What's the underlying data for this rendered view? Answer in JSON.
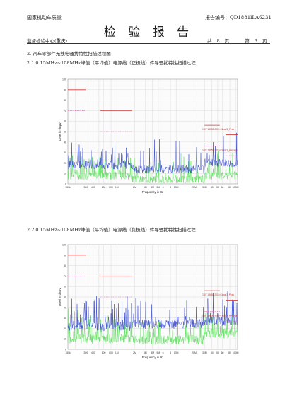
{
  "header": {
    "org": "国家机动车质量",
    "report_no": "报告编号：QD1881lLA6231",
    "title": "检 验 报 告",
    "center": "监督检验中心(重庆)",
    "pages": {
      "total_prefix": "共",
      "total": "8",
      "page_unit": "页",
      "current_prefix": "第",
      "current": "3",
      "current_unit": "页"
    }
  },
  "section": {
    "heading": "2. 汽车零部件无线电骚扰特性扫描过程图",
    "sub1": "2.1  0.15MHz~108MHz峰值（平均值）电源线（正极线）传导骚扰特性扫描过程：",
    "sub2": "2.2  0.15MHz~108MHz峰值（平均值）电源线（负极线）传导骚扰特性扫描过程："
  },
  "chart_data": [
    {
      "type": "line",
      "ylabel": "Level in dBµV",
      "xlabel": "Frequency in Hz",
      "ylim": [
        0,
        100
      ],
      "xlim_mhz": [
        0.15,
        108
      ],
      "x_scale": "log",
      "grid": true,
      "y_ticks": [
        "0",
        "10",
        "20",
        "30",
        "40",
        "50",
        "60",
        "70",
        "80",
        "90",
        "100"
      ],
      "x_ticks": [
        "150k",
        "300",
        "400",
        "600",
        "800",
        "1M",
        "2M",
        "3M",
        "4M",
        "5M",
        "6",
        "8",
        "10M",
        "20M",
        "30M",
        "40",
        "50",
        "60",
        "80",
        "100M"
      ],
      "limit_labels": [
        "GB/T 18655-2010 Class 3_Peak",
        "GB/T 18655-2010 Class 3_Average"
      ],
      "peak_limit": [
        {
          "f1": 0.15,
          "f2": 0.3,
          "level": 90
        },
        {
          "f1": 0.53,
          "f2": 1.8,
          "level": 70
        },
        {
          "f1": 30,
          "f2": 54,
          "level": 56
        },
        {
          "f1": 68,
          "f2": 108,
          "level": 47
        }
      ],
      "avg_limit": [
        {
          "f1": 0.15,
          "f2": 0.3,
          "level": 70
        },
        {
          "f1": 0.53,
          "f2": 1.8,
          "level": 50
        },
        {
          "f1": 30,
          "f2": 54,
          "level": 36
        },
        {
          "f1": 68,
          "f2": 108,
          "level": 27
        }
      ]
    },
    {
      "type": "line",
      "ylabel": "Level in dBµV",
      "xlabel": "Frequency in Hz",
      "ylim": [
        0,
        100
      ],
      "xlim_mhz": [
        0.15,
        108
      ],
      "x_scale": "log",
      "grid": true,
      "y_ticks": [
        "0",
        "10",
        "20",
        "30",
        "40",
        "50",
        "60",
        "70",
        "80",
        "90",
        "100"
      ],
      "x_ticks": [
        "150k",
        "300",
        "400",
        "600",
        "800",
        "1M",
        "2M",
        "3M",
        "4M",
        "5M",
        "6",
        "8",
        "10M",
        "20M",
        "30M",
        "40",
        "50",
        "60",
        "80",
        "100M"
      ],
      "limit_labels": [
        "GB/T 18655-2010 Class 3_Peak",
        "GB/T 18655-2010 Class 3_Average"
      ],
      "peak_limit": [
        {
          "f1": 0.15,
          "f2": 0.3,
          "level": 90
        },
        {
          "f1": 0.53,
          "f2": 1.8,
          "level": 70
        },
        {
          "f1": 30,
          "f2": 54,
          "level": 56
        },
        {
          "f1": 68,
          "f2": 108,
          "level": 47
        }
      ],
      "avg_limit": [
        {
          "f1": 0.15,
          "f2": 0.3,
          "level": 70
        },
        {
          "f1": 0.53,
          "f2": 1.8,
          "level": 50
        },
        {
          "f1": 30,
          "f2": 54,
          "level": 36
        },
        {
          "f1": 68,
          "f2": 108,
          "level": 27
        }
      ]
    }
  ]
}
